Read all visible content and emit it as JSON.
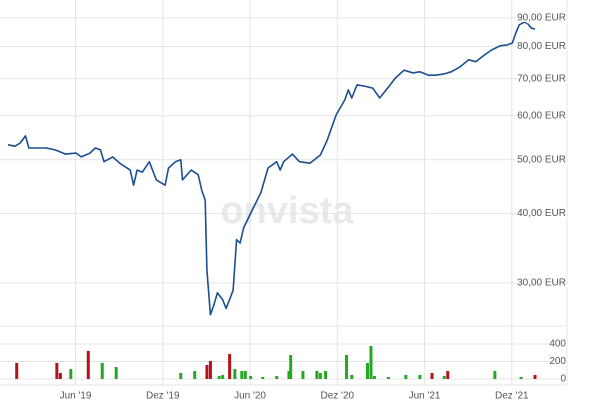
{
  "watermark": "onvista",
  "chart_data": [
    {
      "type": "line",
      "log_scale": true,
      "grid": true,
      "color": "#1b4f8e",
      "x": [
        2019.03,
        2019.07,
        2019.1,
        2019.13,
        2019.15,
        2019.19,
        2019.25,
        2019.3,
        2019.36,
        2019.42,
        2019.45,
        2019.5,
        2019.53,
        2019.56,
        2019.58,
        2019.63,
        2019.67,
        2019.73,
        2019.75,
        2019.77,
        2019.8,
        2019.84,
        2019.88,
        2019.93,
        2019.95,
        2019.99,
        2020.02,
        2020.03,
        2020.08,
        2020.12,
        2020.14,
        2020.16,
        2020.17,
        2020.19,
        2020.21,
        2020.23,
        2020.26,
        2020.28,
        2020.3,
        2020.32,
        2020.34,
        2020.36,
        2020.38,
        2020.43,
        2020.48,
        2020.52,
        2020.57,
        2020.59,
        2020.61,
        2020.66,
        2020.7,
        2020.76,
        2020.82,
        2020.86,
        2020.91,
        2020.96,
        2020.98,
        2021.0,
        2021.03,
        2021.07,
        2021.12,
        2021.16,
        2021.21,
        2021.25,
        2021.3,
        2021.35,
        2021.39,
        2021.44,
        2021.48,
        2021.53,
        2021.57,
        2021.62,
        2021.67,
        2021.71,
        2021.76,
        2021.8,
        2021.85,
        2021.89,
        2021.92,
        2021.94,
        2021.96,
        2021.99,
        2022.01,
        2022.03,
        2022.05
      ],
      "values": [
        53.2,
        52.9,
        53.6,
        55.2,
        52.5,
        52.5,
        52.5,
        52.1,
        51.2,
        51.4,
        50.6,
        51.4,
        52.5,
        52.1,
        49.6,
        50.6,
        49.3,
        47.9,
        45.0,
        47.9,
        47.5,
        49.6,
        46.0,
        45.0,
        48.3,
        49.6,
        50.0,
        46.0,
        47.9,
        47.0,
        44.1,
        42.3,
        31.7,
        26.3,
        27.4,
        28.8,
        28.0,
        27.0,
        28.0,
        29.1,
        35.9,
        35.4,
        37.7,
        40.6,
        43.7,
        48.3,
        49.6,
        47.9,
        49.6,
        51.2,
        49.6,
        49.3,
        51.0,
        54.3,
        60.2,
        64.1,
        66.8,
        64.6,
        68.2,
        67.9,
        67.3,
        64.6,
        67.6,
        70.2,
        72.5,
        71.7,
        72.0,
        71.0,
        71.0,
        71.4,
        72.0,
        73.5,
        75.7,
        75.1,
        77.2,
        78.8,
        80.2,
        80.5,
        81.1,
        84.6,
        87.5,
        88.5,
        87.8,
        86.3,
        86.0
      ],
      "xlim": [
        2019.03,
        2022.05
      ],
      "xticks": [
        {
          "value": 2019.417,
          "label": "Jun '19"
        },
        {
          "value": 2019.917,
          "label": "Dez '19"
        },
        {
          "value": 2020.417,
          "label": "Jun '20"
        },
        {
          "value": 2020.917,
          "label": "Dez '20"
        },
        {
          "value": 2021.417,
          "label": "Jun '21"
        },
        {
          "value": 2021.917,
          "label": "Dez '21"
        }
      ],
      "ylim": [
        25.2,
        95
      ],
      "yticks": [
        {
          "value": 30,
          "label": "30,00 EUR"
        },
        {
          "value": 40,
          "label": "40,00 EUR"
        },
        {
          "value": 50,
          "label": "50,00 EUR"
        },
        {
          "value": 60,
          "label": "60,00 EUR"
        },
        {
          "value": 70,
          "label": "70,00 EUR"
        },
        {
          "value": 80,
          "label": "80,00 EUR"
        },
        {
          "value": 90,
          "label": "90,00 EUR"
        }
      ]
    },
    {
      "type": "bar",
      "grid": true,
      "x": [
        2019.08,
        2019.31,
        2019.33,
        2019.39,
        2019.49,
        2019.57,
        2019.65,
        2020.02,
        2020.1,
        2020.17,
        2020.19,
        2020.24,
        2020.26,
        2020.3,
        2020.33,
        2020.37,
        2020.39,
        2020.42,
        2020.49,
        2020.57,
        2020.64,
        2020.65,
        2020.72,
        2020.8,
        2020.82,
        2020.85,
        2020.97,
        2021.0,
        2021.09,
        2021.11,
        2021.13,
        2021.21,
        2021.31,
        2021.39,
        2021.46,
        2021.53,
        2021.55,
        2021.82,
        2021.97,
        2022.05
      ],
      "values": [
        183,
        183,
        69,
        114,
        320,
        183,
        137,
        69,
        91,
        160,
        206,
        34,
        46,
        286,
        114,
        91,
        91,
        34,
        23,
        34,
        91,
        274,
        91,
        91,
        69,
        91,
        274,
        46,
        183,
        377,
        34,
        23,
        46,
        46,
        69,
        34,
        91,
        91,
        23,
        46
      ],
      "colors": [
        "#b5121b",
        "#b5121b",
        "#b5121b",
        "#22a822",
        "#b5121b",
        "#22a822",
        "#22a822",
        "#22a822",
        "#22a822",
        "#b5121b",
        "#b5121b",
        "#22a822",
        "#22a822",
        "#b5121b",
        "#22a822",
        "#22a822",
        "#22a822",
        "#22a822",
        "#22a822",
        "#22a822",
        "#22a822",
        "#22a822",
        "#22a822",
        "#22a822",
        "#22a822",
        "#22a822",
        "#22a822",
        "#22a822",
        "#22a822",
        "#22a822",
        "#22a822",
        "#22a822",
        "#22a822",
        "#22a822",
        "#b5121b",
        "#22a822",
        "#b5121b",
        "#22a822",
        "#22a822",
        "#b5121b"
      ],
      "xlim": [
        2019.03,
        2022.05
      ],
      "ylim": [
        0,
        594
      ],
      "yticks": [
        0,
        200,
        400
      ]
    }
  ]
}
